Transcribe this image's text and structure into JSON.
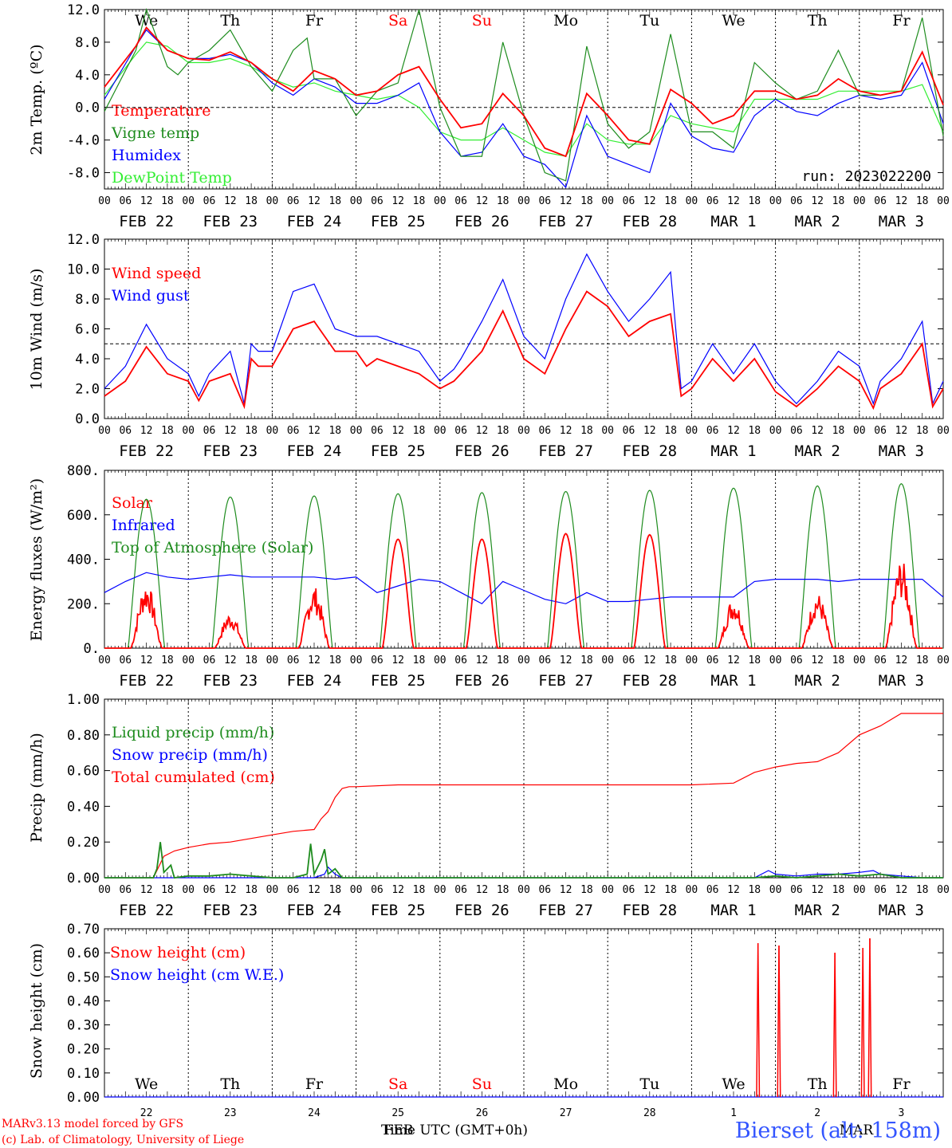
{
  "figure": {
    "run_label": "run: 2023022200",
    "footer_left_1": "MARv3.13 model forced by GFS",
    "footer_left_2": "(c) Lab. of Climatology, University of Liege",
    "footer_center_time": "Time UTC (GMT+0h)",
    "footer_center_feb": "FEB",
    "footer_center_mar": "MAR",
    "station": "Bierset (alt: 158m)",
    "hour_ticks": [
      "00",
      "06",
      "12",
      "18"
    ],
    "final_hour_tick": "00",
    "date_labels": [
      "FEB 22",
      "FEB 23",
      "FEB 24",
      "FEB 25",
      "FEB 26",
      "FEB 27",
      "FEB 28",
      "MAR  1",
      "MAR  2",
      "MAR  3"
    ],
    "weekdays": [
      "We",
      "Th",
      "Fr",
      "Sa",
      "Su",
      "Mo",
      "Tu",
      "We",
      "Th",
      "Fr"
    ],
    "weekend_days": [
      "Sa",
      "Su"
    ],
    "day_numbers": [
      "22",
      "23",
      "24",
      "25",
      "26",
      "27",
      "28",
      "1",
      "2",
      "3"
    ],
    "colors": {
      "red": "#ff0000",
      "green": "#1e8c1e",
      "blue": "#0000ff",
      "lightgreen": "#33ee33",
      "station_blue": "#3355ff"
    }
  },
  "chart_data": [
    {
      "type": "line",
      "ylabel": "2m Temp. (ºC)",
      "ylim": [
        -10,
        12
      ],
      "yticks": [
        "12.0",
        "8.0",
        "4.0",
        "0.0",
        "-4.0",
        "-8.0"
      ],
      "ytick_values": [
        12,
        8,
        4,
        0,
        -4,
        -8
      ],
      "ref_line": 0,
      "x_unit": "hours from FEB 22 00 UTC",
      "xlim": [
        0,
        240
      ],
      "series": [
        {
          "name": "Temperature",
          "color": "red",
          "x": [
            0,
            9,
            12,
            18,
            24,
            30,
            36,
            42,
            48,
            54,
            60,
            66,
            72,
            78,
            84,
            90,
            96,
            102,
            108,
            114,
            120,
            126,
            132,
            138,
            144,
            150,
            156,
            162,
            168,
            174,
            180,
            186,
            192,
            198,
            204,
            210,
            216,
            222,
            228,
            234,
            240
          ],
          "y": [
            2.5,
            7.5,
            9.8,
            7,
            6,
            5.8,
            6.8,
            5.5,
            3.5,
            2,
            4.5,
            3.5,
            1.5,
            2,
            4,
            5,
            1,
            -2.5,
            -2,
            1.7,
            -1,
            -5,
            -6,
            1.7,
            -1,
            -4,
            -4.5,
            2.2,
            0.5,
            -2,
            -1,
            2,
            2,
            1,
            1.5,
            3.5,
            2,
            1.5,
            2,
            6.8,
            0.3
          ]
        },
        {
          "name": "Vigne temp",
          "color": "green",
          "x": [
            0,
            9,
            12,
            18,
            21,
            24,
            30,
            36,
            42,
            48,
            54,
            58,
            60,
            66,
            72,
            78,
            84,
            90,
            96,
            102,
            108,
            114,
            120,
            126,
            132,
            138,
            144,
            150,
            156,
            162,
            168,
            174,
            180,
            186,
            192,
            198,
            204,
            210,
            216,
            222,
            228,
            234,
            240
          ],
          "y": [
            -0.5,
            7,
            12,
            5,
            4,
            5.5,
            7,
            9.5,
            5,
            2,
            7,
            8.5,
            3.5,
            3.5,
            -1,
            2,
            3,
            12,
            0,
            -6,
            -6,
            8,
            -1,
            -8,
            -9,
            7.5,
            -2,
            -5,
            -3,
            9,
            -3,
            -3,
            -5,
            5.5,
            3,
            1,
            2,
            7,
            1.5,
            1.5,
            2,
            11,
            -3.5
          ]
        },
        {
          "name": "Humidex",
          "color": "blue",
          "x": [
            0,
            9,
            12,
            18,
            24,
            30,
            36,
            42,
            48,
            54,
            60,
            66,
            72,
            78,
            84,
            90,
            96,
            102,
            108,
            114,
            120,
            126,
            132,
            138,
            144,
            150,
            156,
            162,
            168,
            174,
            180,
            186,
            192,
            198,
            204,
            210,
            216,
            222,
            228,
            234,
            240
          ],
          "y": [
            1,
            7.5,
            9.5,
            7,
            6,
            6,
            6.5,
            5.5,
            3,
            1.5,
            3.5,
            2.5,
            0.5,
            0.5,
            1.5,
            3,
            -3,
            -6,
            -5.5,
            -2,
            -6,
            -7,
            -9.8,
            -1,
            -6,
            -7,
            -8,
            0.5,
            -3.5,
            -5,
            -5.5,
            -1,
            1,
            -0.5,
            -1,
            0.5,
            1.5,
            1,
            1.5,
            5.5,
            -2
          ]
        },
        {
          "name": "DewPoint Temp",
          "color": "lightgreen",
          "x": [
            0,
            9,
            12,
            18,
            24,
            30,
            36,
            42,
            48,
            54,
            60,
            66,
            72,
            78,
            84,
            90,
            96,
            102,
            108,
            114,
            120,
            126,
            132,
            138,
            144,
            150,
            156,
            162,
            168,
            174,
            180,
            186,
            192,
            198,
            204,
            210,
            216,
            222,
            228,
            234,
            240
          ],
          "y": [
            1.5,
            6.5,
            8,
            7.5,
            5.5,
            5.5,
            6,
            5,
            3.5,
            2.5,
            3,
            2,
            1.5,
            1,
            1.5,
            0,
            -3,
            -4,
            -4,
            -2.5,
            -4,
            -5.5,
            -6,
            -2,
            -4,
            -4.5,
            -4.5,
            -1,
            -2,
            -2.5,
            -3,
            1,
            1,
            1,
            1,
            2,
            2,
            2,
            2,
            2.8,
            -3
          ]
        }
      ]
    },
    {
      "type": "line",
      "ylabel": "10m Wind (m/s)",
      "ylim": [
        0,
        12
      ],
      "yticks": [
        "12.0",
        "10.0",
        "8.0",
        "6.0",
        "4.0",
        "2.0",
        "0.0"
      ],
      "ytick_values": [
        12,
        10,
        8,
        6,
        4,
        2,
        0
      ],
      "ref_line": 5,
      "xlim": [
        0,
        240
      ],
      "series": [
        {
          "name": "Wind speed",
          "color": "red",
          "x": [
            0,
            6,
            12,
            18,
            24,
            27,
            30,
            36,
            40,
            42,
            44,
            48,
            54,
            60,
            66,
            72,
            75,
            78,
            84,
            90,
            96,
            100,
            102,
            108,
            114,
            120,
            126,
            132,
            138,
            144,
            150,
            156,
            162,
            165,
            168,
            174,
            180,
            186,
            192,
            198,
            204,
            210,
            216,
            220,
            222,
            228,
            234,
            237,
            240
          ],
          "y": [
            1.5,
            2.5,
            4.8,
            3,
            2.5,
            1.2,
            2.5,
            3,
            0.8,
            4,
            3.5,
            3.5,
            6,
            6.5,
            4.5,
            4.5,
            3.5,
            4,
            3.5,
            3,
            2,
            2.5,
            3,
            4.5,
            7.2,
            4,
            3,
            6,
            8.5,
            7.5,
            5.5,
            6.5,
            7,
            1.5,
            2,
            4,
            2.5,
            4,
            1.8,
            0.8,
            2,
            3.5,
            2.5,
            0.7,
            2,
            3,
            5,
            0.8,
            2
          ]
        },
        {
          "name": "Wind gust",
          "color": "blue",
          "x": [
            0,
            6,
            12,
            18,
            24,
            27,
            30,
            36,
            40,
            42,
            44,
            48,
            54,
            60,
            66,
            72,
            78,
            84,
            90,
            96,
            100,
            102,
            108,
            114,
            120,
            126,
            132,
            138,
            144,
            150,
            156,
            162,
            165,
            168,
            174,
            180,
            186,
            192,
            198,
            204,
            210,
            216,
            220,
            222,
            228,
            234,
            237,
            240
          ],
          "y": [
            2,
            3.5,
            6.3,
            4,
            3,
            1.5,
            3,
            4.5,
            1,
            5,
            4.5,
            4.5,
            8.5,
            9,
            6,
            5.5,
            5.5,
            5,
            4.5,
            2.5,
            3.3,
            4,
            6.5,
            9.3,
            5.5,
            4,
            8,
            11,
            8.5,
            6.5,
            8,
            9.8,
            2,
            2.5,
            5,
            3,
            5,
            2.5,
            1,
            2.5,
            4.5,
            3.5,
            1,
            2.5,
            4,
            6.5,
            1,
            2.5
          ]
        }
      ]
    },
    {
      "type": "line",
      "ylabel": "Energy fluxes (W/m²)",
      "ylim": [
        0,
        800
      ],
      "yticks": [
        "800.",
        "600.",
        "400.",
        "200.",
        "0."
      ],
      "ytick_values": [
        800,
        600,
        400,
        200,
        0
      ],
      "xlim": [
        0,
        240
      ],
      "series": [
        {
          "name": "Solar",
          "color": "red",
          "day_peaks": [
            300,
            160,
            280,
            490,
            490,
            515,
            510,
            230,
            250,
            400
          ]
        },
        {
          "name": "Infrared",
          "color": "blue",
          "x": [
            0,
            6,
            12,
            18,
            24,
            30,
            36,
            42,
            48,
            54,
            60,
            66,
            72,
            78,
            84,
            90,
            96,
            102,
            108,
            114,
            120,
            126,
            132,
            138,
            144,
            150,
            156,
            162,
            168,
            174,
            180,
            186,
            192,
            198,
            204,
            210,
            216,
            222,
            228,
            234,
            240
          ],
          "y": [
            250,
            300,
            340,
            320,
            310,
            320,
            330,
            320,
            320,
            320,
            320,
            310,
            320,
            250,
            280,
            310,
            300,
            250,
            200,
            300,
            260,
            220,
            200,
            250,
            210,
            210,
            220,
            230,
            230,
            230,
            230,
            300,
            310,
            310,
            310,
            300,
            310,
            310,
            310,
            310,
            230
          ]
        },
        {
          "name": "Top of Atmosphere (Solar)",
          "color": "green",
          "day_peaks": [
            670,
            680,
            685,
            695,
            700,
            705,
            710,
            720,
            730,
            740
          ]
        }
      ]
    },
    {
      "type": "line",
      "ylabel": "Precip (mm/h)",
      "ylim": [
        0,
        1.0
      ],
      "yticks": [
        "1.00",
        "0.80",
        "0.60",
        "0.40",
        "0.20",
        "0.00"
      ],
      "ytick_values": [
        1.0,
        0.8,
        0.6,
        0.4,
        0.2,
        0.0
      ],
      "xlim": [
        0,
        240
      ],
      "series": [
        {
          "name": "Liquid precip (mm/h)",
          "color": "green",
          "x": [
            0,
            14,
            15,
            16,
            17,
            19,
            20,
            24,
            30,
            36,
            42,
            48,
            54,
            58,
            59,
            60,
            62,
            63,
            64,
            66,
            68,
            72,
            120,
            186,
            192,
            198,
            204,
            210,
            216,
            222,
            228,
            234,
            240
          ],
          "y": [
            0,
            0,
            0.05,
            0.2,
            0.03,
            0.07,
            0,
            0.01,
            0.01,
            0.02,
            0.01,
            0,
            0,
            0.02,
            0.19,
            0.02,
            0.1,
            0.16,
            0.02,
            0.05,
            0,
            0,
            0,
            0,
            0.01,
            0,
            0.01,
            0.02,
            0.01,
            0.02,
            0,
            0,
            0
          ]
        },
        {
          "name": "Snow precip (mm/h)",
          "color": "blue",
          "x": [
            0,
            60,
            63,
            64,
            66,
            68,
            72,
            186,
            190,
            192,
            198,
            204,
            210,
            216,
            220,
            222,
            228,
            234,
            240
          ],
          "y": [
            0,
            0,
            0.02,
            0.06,
            0.02,
            0,
            0,
            0,
            0.04,
            0.02,
            0.01,
            0.02,
            0.02,
            0.03,
            0.04,
            0.02,
            0.01,
            0,
            0
          ]
        },
        {
          "name": "Total cumulated (cm)",
          "color": "red",
          "x": [
            0,
            14,
            17,
            20,
            24,
            30,
            36,
            42,
            48,
            54,
            60,
            62,
            64,
            66,
            68,
            70,
            72,
            84,
            96,
            108,
            120,
            132,
            144,
            156,
            168,
            180,
            186,
            188,
            192,
            198,
            204,
            210,
            216,
            222,
            228,
            234,
            240
          ],
          "y": [
            0,
            0,
            0.12,
            0.15,
            0.17,
            0.19,
            0.2,
            0.22,
            0.24,
            0.26,
            0.27,
            0.33,
            0.37,
            0.45,
            0.5,
            0.51,
            0.51,
            0.52,
            0.52,
            0.52,
            0.52,
            0.52,
            0.52,
            0.52,
            0.52,
            0.53,
            0.59,
            0.6,
            0.62,
            0.64,
            0.65,
            0.7,
            0.8,
            0.85,
            0.92,
            0.92,
            0.92
          ]
        }
      ]
    },
    {
      "type": "line",
      "ylabel": "Snow height (cm)",
      "ylim": [
        0,
        0.7
      ],
      "yticks": [
        "0.70",
        "0.60",
        "0.50",
        "0.40",
        "0.30",
        "0.20",
        "0.10",
        "0.00"
      ],
      "ytick_values": [
        0.7,
        0.6,
        0.5,
        0.4,
        0.3,
        0.2,
        0.1,
        0.0
      ],
      "xlim": [
        0,
        240
      ],
      "series": [
        {
          "name": "Snow height (cm)",
          "color": "red",
          "spikes_x": [
            187,
            193,
            209,
            217,
            219
          ],
          "spikes_y": [
            0.64,
            0.63,
            0.6,
            0.62,
            0.66
          ]
        },
        {
          "name": "Snow height (cm W.E.)",
          "color": "blue",
          "x": [
            0,
            240
          ],
          "y": [
            0,
            0
          ]
        }
      ]
    }
  ]
}
